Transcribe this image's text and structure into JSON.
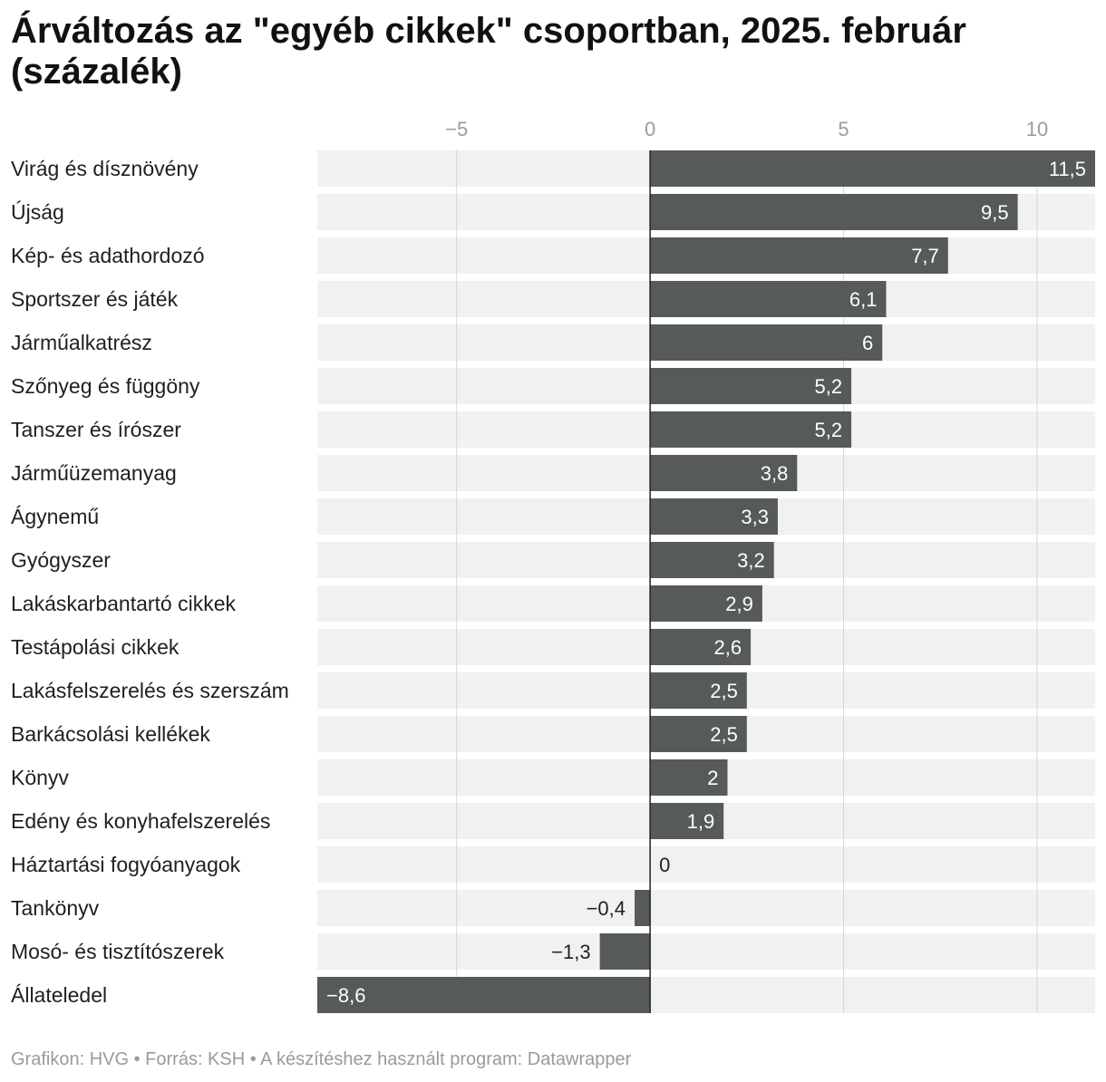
{
  "title": "Árváltozás az \"egyéb cikkek\" csoportban, 2025. február (százalék)",
  "footer": {
    "text": "Grafikon: HVG • Forrás: KSH • A készítéshez használt program: Datawrapper"
  },
  "colors": {
    "bar": "#565b59",
    "track": "#f1f1f1",
    "grid": "#d6d6d6",
    "zero_line": "#222222",
    "label_inside": "#ffffff",
    "label_outside": "#222222"
  },
  "chart_data": {
    "type": "bar",
    "orientation": "horizontal",
    "title": "Árváltozás az \"egyéb cikkek\" csoportban, 2025. február (százalék)",
    "xlabel": "",
    "ylabel": "",
    "xlim": [
      -8.6,
      11.5
    ],
    "x_ticks": [
      -5,
      0,
      5,
      10
    ],
    "x_tick_labels": [
      "−5",
      "0",
      "5",
      "10"
    ],
    "grid": true,
    "categories": [
      "Virág és dísznövény",
      "Újság",
      "Kép- és adathordozó",
      "Sportszer és játék",
      "Járműalkatrész",
      "Szőnyeg és függöny",
      "Tanszer és írószer",
      "Járműüzemanyag",
      "Ágynemű",
      "Gyógyszer",
      "Lakáskarbantartó cikkek",
      "Testápolási cikkek",
      "Lakásfelszerelés és szerszám",
      "Barkácsolási kellékek",
      "Könyv",
      "Edény és konyhafelszerelés",
      "Háztartási fogyóanyagok",
      "Tankönyv",
      "Mosó- és tisztítószerek",
      "Állateledel"
    ],
    "values": [
      11.5,
      9.5,
      7.7,
      6.1,
      6,
      5.2,
      5.2,
      3.8,
      3.3,
      3.2,
      2.9,
      2.6,
      2.5,
      2.5,
      2,
      1.9,
      0,
      -0.4,
      -1.3,
      -8.6
    ],
    "value_labels": [
      "11,5",
      "9,5",
      "7,7",
      "6,1",
      "6",
      "5,2",
      "5,2",
      "3,8",
      "3,3",
      "3,2",
      "2,9",
      "2,6",
      "2,5",
      "2,5",
      "2",
      "1,9",
      "0",
      "−0,4",
      "−1,3",
      "−8,6"
    ]
  }
}
